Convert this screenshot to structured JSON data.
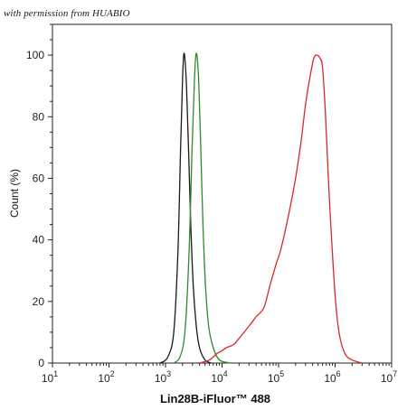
{
  "watermark": "with permission from HUABIO",
  "chart_data": {
    "type": "line",
    "xlabel": "Lin28B-iFluor™ 488",
    "ylabel": "Count  (%)",
    "x_scale": "log",
    "xlim": [
      10,
      10000000
    ],
    "ylim": [
      0,
      110
    ],
    "x_ticks": [
      {
        "value": 10,
        "base": "10",
        "exp": "1"
      },
      {
        "value": 100,
        "base": "10",
        "exp": "2"
      },
      {
        "value": 1000,
        "base": "10",
        "exp": "3"
      },
      {
        "value": 10000,
        "base": "10",
        "exp": "4"
      },
      {
        "value": 100000,
        "base": "10",
        "exp": "5"
      },
      {
        "value": 1000000,
        "base": "10",
        "exp": "6"
      },
      {
        "value": 10000000,
        "base": "10",
        "exp": "7"
      }
    ],
    "y_ticks": [
      0,
      20,
      40,
      60,
      80,
      100
    ],
    "grid": false,
    "series": [
      {
        "color": "#1a1a1a",
        "x": [
          800,
          1100,
          1400,
          1650,
          1850,
          2000,
          2100,
          2200,
          2350,
          2550,
          2800,
          3100,
          3500,
          4000,
          5000,
          6500
        ],
        "y": [
          0,
          2,
          10,
          35,
          70,
          92,
          100,
          99,
          90,
          70,
          45,
          25,
          12,
          5,
          1,
          0
        ]
      },
      {
        "color": "#2e8b2e",
        "x": [
          1400,
          1800,
          2200,
          2600,
          2950,
          3250,
          3450,
          3650,
          3900,
          4200,
          4600,
          5100,
          5800,
          7000,
          9000,
          14000
        ],
        "y": [
          0,
          2,
          10,
          35,
          70,
          92,
          100,
          99,
          90,
          70,
          45,
          25,
          12,
          5,
          1,
          0
        ]
      },
      {
        "color": "#d42a2a",
        "x": [
          4000,
          6000,
          8000,
          10000,
          12000,
          16000,
          20000,
          30000,
          40000,
          55000,
          70000,
          90000,
          110000,
          150000,
          200000,
          250000,
          300000,
          360000,
          420000,
          480000,
          540000,
          600000,
          680000,
          800000,
          1000000,
          1200000,
          1500000,
          2000000,
          3000000
        ],
        "y": [
          0,
          1,
          3,
          4,
          5,
          6,
          8,
          12,
          15,
          18,
          25,
          32,
          37,
          48,
          60,
          72,
          84,
          93,
          99,
          100,
          99,
          96,
          80,
          52,
          22,
          9,
          3,
          1,
          0
        ]
      }
    ]
  }
}
